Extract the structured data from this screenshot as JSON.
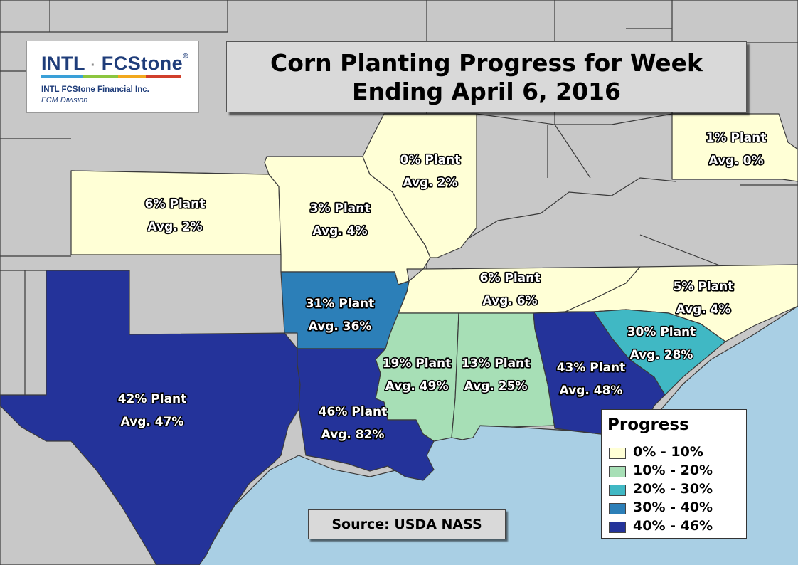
{
  "title": {
    "line1": "Corn Planting Progress for Week",
    "line2": "Ending April 6, 2016"
  },
  "logo": {
    "brand_left": "INTL",
    "separator": "·",
    "brand_right": "FCStone",
    "registered": "®",
    "company": "INTL FCStone Financial Inc.",
    "division": "FCM Division"
  },
  "source": "Source: USDA NASS",
  "colors": {
    "water": "#a9cfe4",
    "land_other": "#c8c8c8",
    "bin_0_10": "#ffffd6",
    "bin_10_20": "#a7dfb6",
    "bin_20_30": "#40b8c4",
    "bin_30_40": "#2c7fb8",
    "bin_40_46": "#24339a"
  },
  "legend": {
    "title": "Progress",
    "items": [
      {
        "label": "0% - 10%",
        "color": "#ffffd6"
      },
      {
        "label": "10% - 20%",
        "color": "#a7dfb6"
      },
      {
        "label": "20% - 30%",
        "color": "#40b8c4"
      },
      {
        "label": "30% - 40%",
        "color": "#2c7fb8"
      },
      {
        "label": "40% - 46%",
        "color": "#24339a"
      }
    ]
  },
  "states": [
    {
      "id": "kansas",
      "plant": "6% Plant",
      "avg": "Avg. 2%",
      "planted_pct": 6,
      "avg_pct": 2,
      "bin": "0-10"
    },
    {
      "id": "missouri",
      "plant": "3% Plant",
      "avg": "Avg. 4%",
      "planted_pct": 3,
      "avg_pct": 4,
      "bin": "0-10"
    },
    {
      "id": "illinois",
      "plant": "0% Plant",
      "avg": "Avg. 2%",
      "planted_pct": 0,
      "avg_pct": 2,
      "bin": "0-10"
    },
    {
      "id": "pennsylvania",
      "plant": "1% Plant",
      "avg": "Avg. 0%",
      "planted_pct": 1,
      "avg_pct": 0,
      "bin": "0-10"
    },
    {
      "id": "tennessee",
      "plant": "6% Plant",
      "avg": "Avg. 6%",
      "planted_pct": 6,
      "avg_pct": 6,
      "bin": "0-10"
    },
    {
      "id": "north-carolina",
      "plant": "5% Plant",
      "avg": "Avg. 4%",
      "planted_pct": 5,
      "avg_pct": 4,
      "bin": "0-10"
    },
    {
      "id": "arkansas",
      "plant": "31% Plant",
      "avg": "Avg. 36%",
      "planted_pct": 31,
      "avg_pct": 36,
      "bin": "30-40"
    },
    {
      "id": "south-carolina",
      "plant": "30% Plant",
      "avg": "Avg. 28%",
      "planted_pct": 30,
      "avg_pct": 28,
      "bin": "20-30"
    },
    {
      "id": "mississippi",
      "plant": "19% Plant",
      "avg": "Avg. 49%",
      "planted_pct": 19,
      "avg_pct": 49,
      "bin": "10-20"
    },
    {
      "id": "alabama",
      "plant": "13% Plant",
      "avg": "Avg. 25%",
      "planted_pct": 13,
      "avg_pct": 25,
      "bin": "10-20"
    },
    {
      "id": "georgia",
      "plant": "43% Plant",
      "avg": "Avg. 48%",
      "planted_pct": 43,
      "avg_pct": 48,
      "bin": "40-46"
    },
    {
      "id": "texas",
      "plant": "42% Plant",
      "avg": "Avg. 47%",
      "planted_pct": 42,
      "avg_pct": 47,
      "bin": "40-46"
    },
    {
      "id": "louisiana",
      "plant": "46% Plant",
      "avg": "Avg. 82%",
      "planted_pct": 46,
      "avg_pct": 82,
      "bin": "40-46"
    }
  ]
}
